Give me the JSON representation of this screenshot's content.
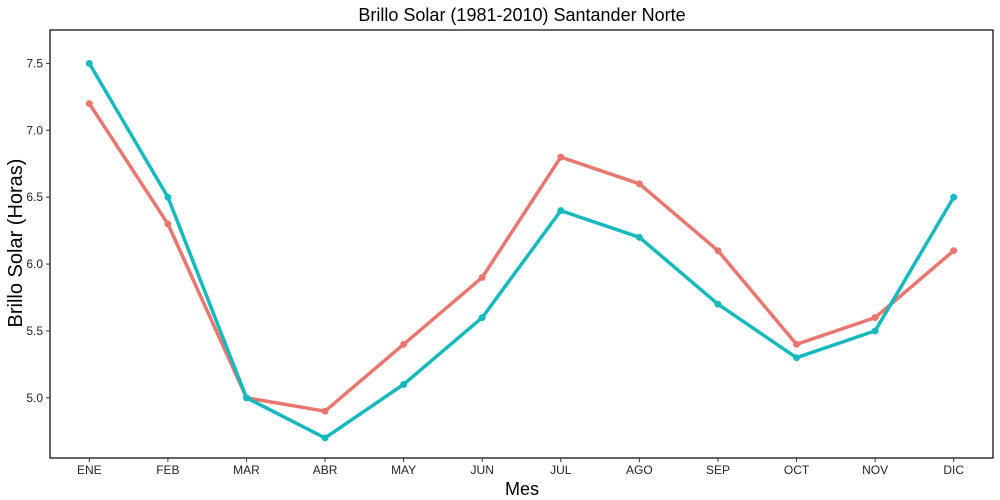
{
  "chart_data": {
    "type": "line",
    "title": "Brillo Solar (1981-2010)  Santander Norte",
    "xlabel": "Mes",
    "ylabel": "Brillo Solar (Horas)",
    "categories": [
      "ENE",
      "FEB",
      "MAR",
      "ABR",
      "MAY",
      "JUN",
      "JUL",
      "AGO",
      "SEP",
      "OCT",
      "NOV",
      "DIC"
    ],
    "ylim": [
      4.55,
      7.75
    ],
    "yticks": [
      "5.0",
      "5.5",
      "6.0",
      "6.5",
      "7.0",
      "7.5"
    ],
    "grid": false,
    "legend": "none",
    "series": [
      {
        "color": "#e8776f",
        "values": [
          7.2,
          6.3,
          5.0,
          4.9,
          5.4,
          5.9,
          6.8,
          6.6,
          6.1,
          5.4,
          5.6,
          6.1
        ]
      },
      {
        "color": "#16b9bd",
        "values": [
          7.5,
          6.5,
          5.0,
          4.7,
          5.1,
          5.6,
          6.4,
          6.2,
          5.7,
          5.3,
          5.5,
          6.5
        ]
      }
    ]
  }
}
